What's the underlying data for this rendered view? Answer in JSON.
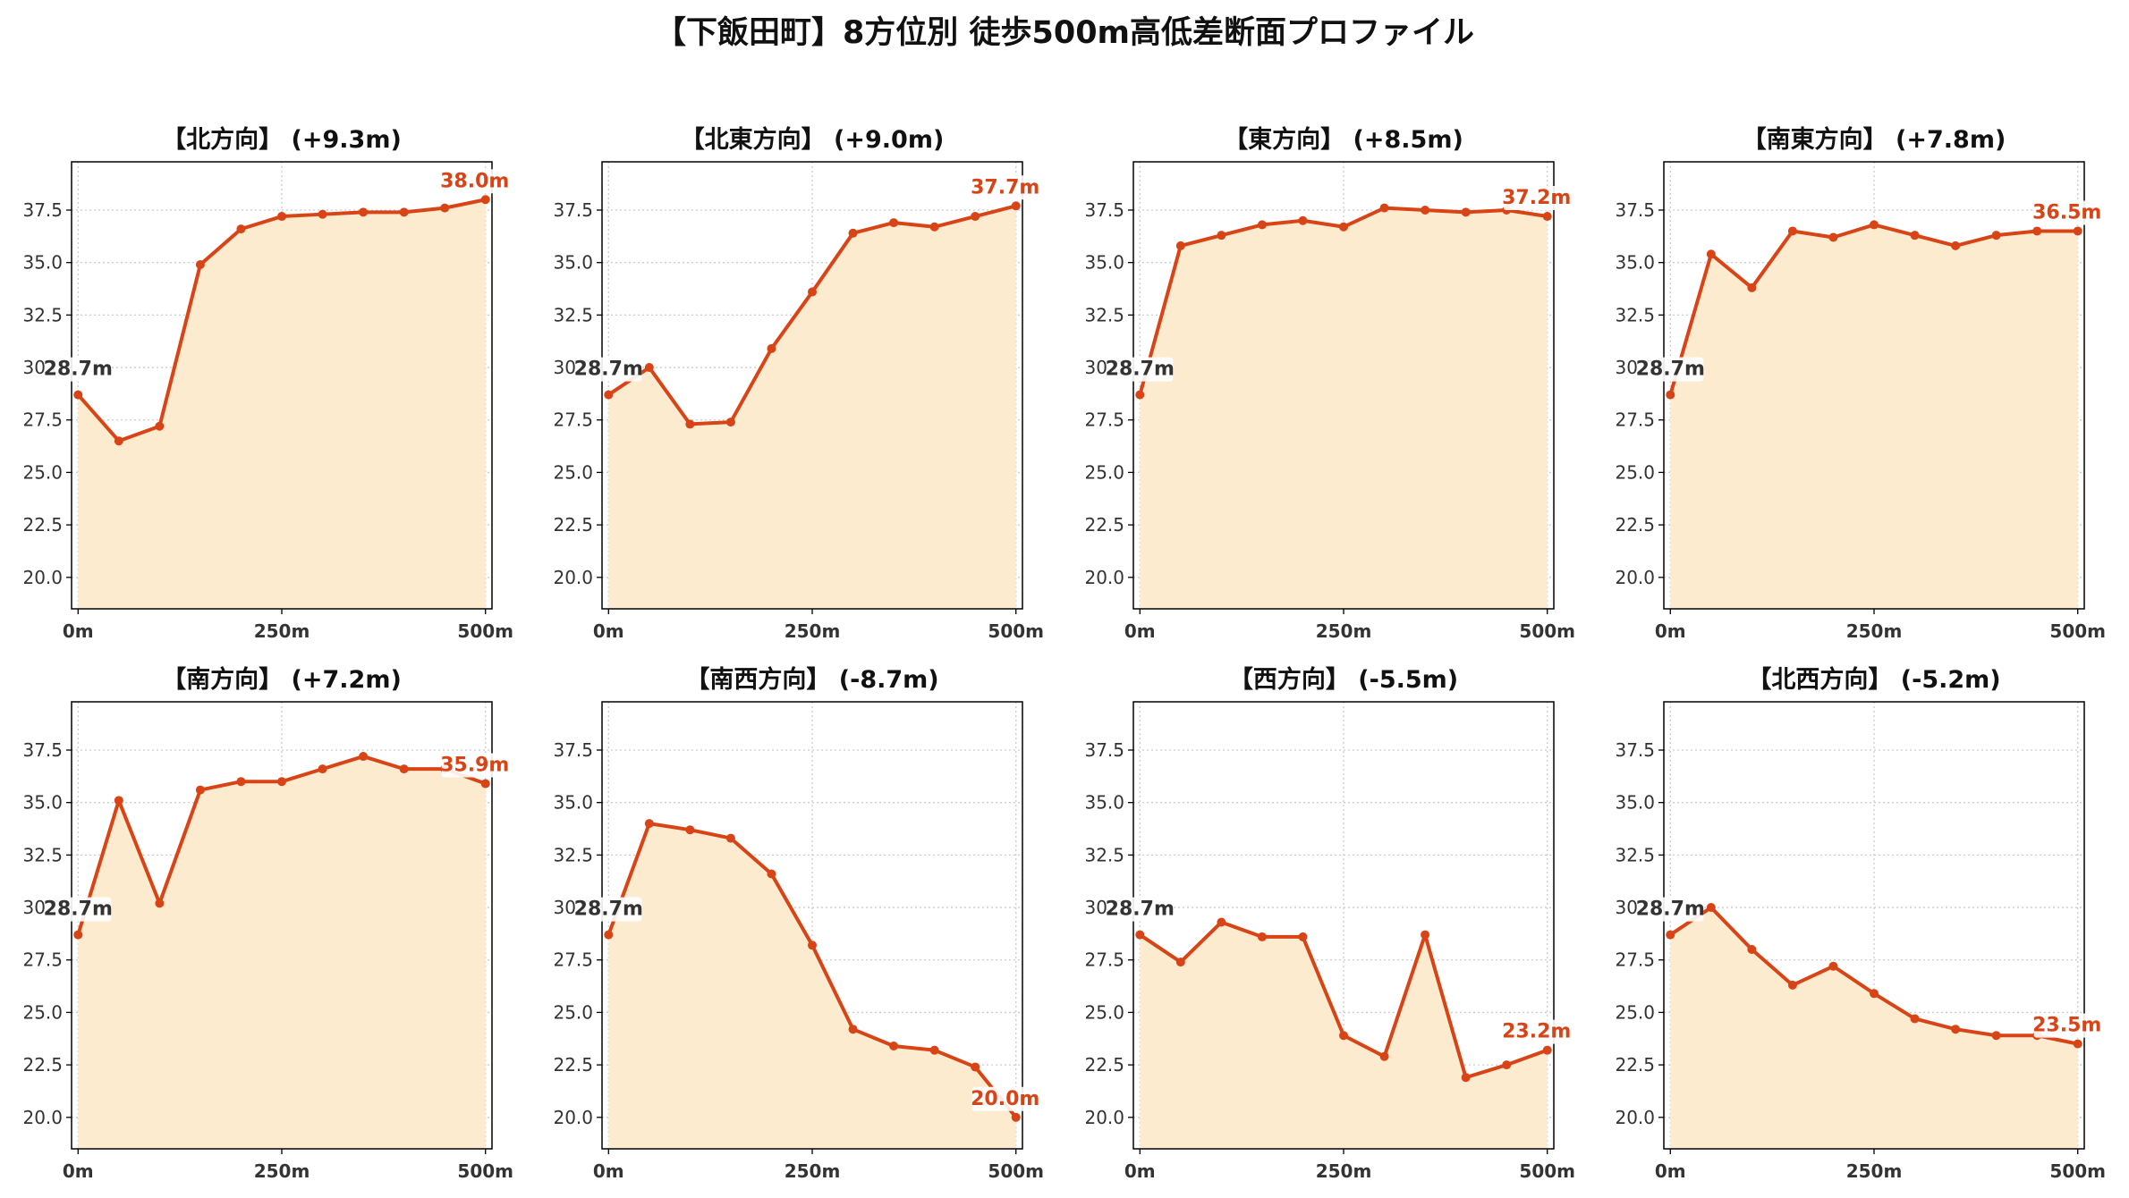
{
  "figure_title": "【下飯田町】8方位別 徒歩500m高低差断面プロファイル",
  "colors": {
    "line": "#d94417",
    "fill": "#fdebd0",
    "start_label": "#333333",
    "end_label": "#d94417",
    "grid": "#cccccc"
  },
  "chart_data": [
    {
      "type": "area",
      "title": "【北方向】 (+9.3m)",
      "x": [
        0,
        50,
        100,
        150,
        200,
        250,
        300,
        350,
        400,
        450,
        500
      ],
      "y": [
        28.7,
        26.5,
        27.2,
        34.9,
        36.6,
        37.2,
        37.3,
        37.4,
        37.4,
        37.6,
        38.0
      ],
      "start_label": "28.7m",
      "end_label": "38.0m",
      "xticks": [
        "0m",
        "250m",
        "500m"
      ],
      "xtick_values": [
        0,
        250,
        500
      ],
      "yticks": [
        "20.0",
        "22.5",
        "25.0",
        "27.5",
        "30.0",
        "32.5",
        "35.0",
        "37.5"
      ],
      "ylim": [
        18.5,
        39.8
      ],
      "xlim": [
        -8,
        508
      ],
      "grid": true
    },
    {
      "type": "area",
      "title": "【北東方向】 (+9.0m)",
      "x": [
        0,
        50,
        100,
        150,
        200,
        250,
        300,
        350,
        400,
        450,
        500
      ],
      "y": [
        28.7,
        30.0,
        27.3,
        27.4,
        30.9,
        33.6,
        36.4,
        36.9,
        36.7,
        37.2,
        37.7
      ],
      "start_label": "28.7m",
      "end_label": "37.7m",
      "xticks": [
        "0m",
        "250m",
        "500m"
      ],
      "xtick_values": [
        0,
        250,
        500
      ],
      "yticks": [
        "20.0",
        "22.5",
        "25.0",
        "27.5",
        "30.0",
        "32.5",
        "35.0",
        "37.5"
      ],
      "ylim": [
        18.5,
        39.8
      ],
      "xlim": [
        -8,
        508
      ],
      "grid": true
    },
    {
      "type": "area",
      "title": "【東方向】 (+8.5m)",
      "x": [
        0,
        50,
        100,
        150,
        200,
        250,
        300,
        350,
        400,
        450,
        500
      ],
      "y": [
        28.7,
        35.8,
        36.3,
        36.8,
        37.0,
        36.7,
        37.6,
        37.5,
        37.4,
        37.5,
        37.2
      ],
      "start_label": "28.7m",
      "end_label": "37.2m",
      "xticks": [
        "0m",
        "250m",
        "500m"
      ],
      "xtick_values": [
        0,
        250,
        500
      ],
      "yticks": [
        "20.0",
        "22.5",
        "25.0",
        "27.5",
        "30.0",
        "32.5",
        "35.0",
        "37.5"
      ],
      "ylim": [
        18.5,
        39.8
      ],
      "xlim": [
        -8,
        508
      ],
      "grid": true
    },
    {
      "type": "area",
      "title": "【南東方向】 (+7.8m)",
      "x": [
        0,
        50,
        100,
        150,
        200,
        250,
        300,
        350,
        400,
        450,
        500
      ],
      "y": [
        28.7,
        35.4,
        33.8,
        36.5,
        36.2,
        36.8,
        36.3,
        35.8,
        36.3,
        36.5,
        36.5
      ],
      "start_label": "28.7m",
      "end_label": "36.5m",
      "xticks": [
        "0m",
        "250m",
        "500m"
      ],
      "xtick_values": [
        0,
        250,
        500
      ],
      "yticks": [
        "20.0",
        "22.5",
        "25.0",
        "27.5",
        "30.0",
        "32.5",
        "35.0",
        "37.5"
      ],
      "ylim": [
        18.5,
        39.8
      ],
      "xlim": [
        -8,
        508
      ],
      "grid": true
    },
    {
      "type": "area",
      "title": "【南方向】 (+7.2m)",
      "x": [
        0,
        50,
        100,
        150,
        200,
        250,
        300,
        350,
        400,
        450,
        500
      ],
      "y": [
        28.7,
        35.1,
        30.2,
        35.6,
        36.0,
        36.0,
        36.6,
        37.2,
        36.6,
        36.6,
        35.9
      ],
      "start_label": "28.7m",
      "end_label": "35.9m",
      "xticks": [
        "0m",
        "250m",
        "500m"
      ],
      "xtick_values": [
        0,
        250,
        500
      ],
      "yticks": [
        "20.0",
        "22.5",
        "25.0",
        "27.5",
        "30.0",
        "32.5",
        "35.0",
        "37.5"
      ],
      "ylim": [
        18.5,
        39.8
      ],
      "xlim": [
        -8,
        508
      ],
      "grid": true
    },
    {
      "type": "area",
      "title": "【南西方向】 (-8.7m)",
      "x": [
        0,
        50,
        100,
        150,
        200,
        250,
        300,
        350,
        400,
        450,
        500
      ],
      "y": [
        28.7,
        34.0,
        33.7,
        33.3,
        31.6,
        28.2,
        24.2,
        23.4,
        23.2,
        22.4,
        20.0
      ],
      "start_label": "28.7m",
      "end_label": "20.0m",
      "xticks": [
        "0m",
        "250m",
        "500m"
      ],
      "xtick_values": [
        0,
        250,
        500
      ],
      "yticks": [
        "20.0",
        "22.5",
        "25.0",
        "27.5",
        "30.0",
        "32.5",
        "35.0",
        "37.5"
      ],
      "ylim": [
        18.5,
        39.8
      ],
      "xlim": [
        -8,
        508
      ],
      "grid": true
    },
    {
      "type": "area",
      "title": "【西方向】 (-5.5m)",
      "x": [
        0,
        50,
        100,
        150,
        200,
        250,
        300,
        350,
        400,
        450,
        500
      ],
      "y": [
        28.7,
        27.4,
        29.3,
        28.6,
        28.6,
        23.9,
        22.9,
        28.7,
        21.9,
        22.5,
        23.2
      ],
      "start_label": "28.7m",
      "end_label": "23.2m",
      "xticks": [
        "0m",
        "250m",
        "500m"
      ],
      "xtick_values": [
        0,
        250,
        500
      ],
      "yticks": [
        "20.0",
        "22.5",
        "25.0",
        "27.5",
        "30.0",
        "32.5",
        "35.0",
        "37.5"
      ],
      "ylim": [
        18.5,
        39.8
      ],
      "xlim": [
        -8,
        508
      ],
      "grid": true
    },
    {
      "type": "area",
      "title": "【北西方向】 (-5.2m)",
      "x": [
        0,
        50,
        100,
        150,
        200,
        250,
        300,
        350,
        400,
        450,
        500
      ],
      "y": [
        28.7,
        30.0,
        28.0,
        26.3,
        27.2,
        25.9,
        24.7,
        24.2,
        23.9,
        23.9,
        23.5
      ],
      "start_label": "28.7m",
      "end_label": "23.5m",
      "xticks": [
        "0m",
        "250m",
        "500m"
      ],
      "xtick_values": [
        0,
        250,
        500
      ],
      "yticks": [
        "20.0",
        "22.5",
        "25.0",
        "27.5",
        "30.0",
        "32.5",
        "35.0",
        "37.5"
      ],
      "ylim": [
        18.5,
        39.8
      ],
      "xlim": [
        -8,
        508
      ],
      "grid": true
    }
  ]
}
